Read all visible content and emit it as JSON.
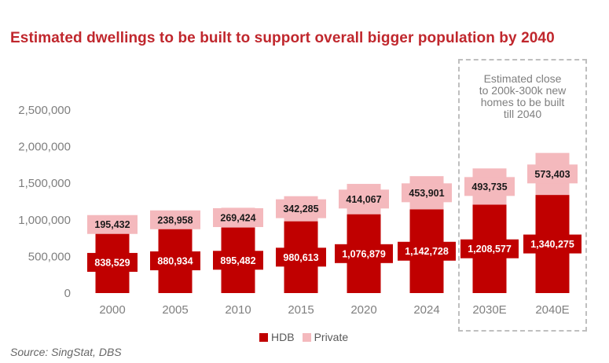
{
  "title": "Estimated dwellings to be built to support overall bigger population by 2040",
  "source": "Source: SingStat, DBS",
  "annotation": "Estimated close\nto 200k-300k new\nhomes to be built\ntill 2040",
  "legend": [
    {
      "name": "HDB",
      "color": "#c00000"
    },
    {
      "name": "Private",
      "color": "#f4b9bd"
    }
  ],
  "chart_data": {
    "type": "bar",
    "stacked": true,
    "title": "Estimated dwellings to be built to support overall bigger population by 2040",
    "categories": [
      "2000",
      "2005",
      "2010",
      "2015",
      "2020",
      "2024",
      "2030E",
      "2040E"
    ],
    "series": [
      {
        "name": "HDB",
        "color": "#c00000",
        "values": [
          838529,
          880934,
          895482,
          980613,
          1076879,
          1142728,
          1208577,
          1340275
        ],
        "labels": [
          "838,529",
          "880,934",
          "895,482",
          "980,613",
          "1,076,879",
          "1,142,728",
          "1,208,577",
          "1,340,275"
        ]
      },
      {
        "name": "Private",
        "color": "#f4b9bd",
        "values": [
          195432,
          238958,
          269424,
          342285,
          414067,
          453901,
          493735,
          573403
        ],
        "labels": [
          "195,432",
          "238,958",
          "269,424",
          "342,285",
          "414,067",
          "453,901",
          "493,735",
          "573,403"
        ]
      }
    ],
    "ylim": [
      0,
      2500000
    ],
    "yticks": [
      0,
      500000,
      1000000,
      1500000,
      2000000,
      2500000
    ],
    "ytick_labels": [
      "0",
      "500,000",
      "1,000,000",
      "1,500,000",
      "2,000,000",
      "2,500,000"
    ],
    "xlabel": "",
    "ylabel": "",
    "grid": false,
    "legend_position": "bottom"
  }
}
